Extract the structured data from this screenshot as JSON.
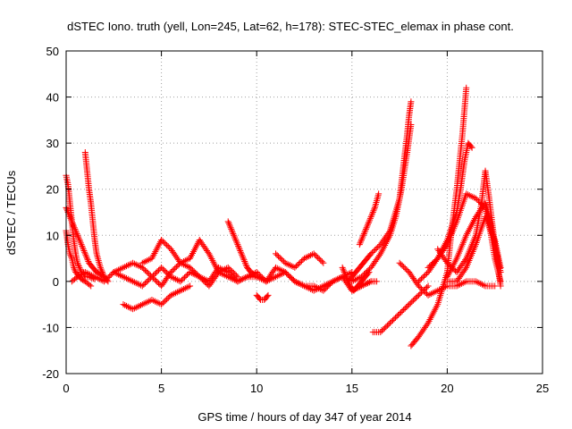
{
  "chart_data": {
    "type": "scatter",
    "title": "dSTEC Iono. truth (yell, Lon=245, Lat=62, h=178): STEC-STEC_elemax in phase cont.",
    "xlabel": "GPS time / hours of day 347 of year 2014",
    "ylabel": "dSTEC  / TECUs",
    "xlim": [
      0,
      25
    ],
    "ylim": [
      -20,
      50
    ],
    "xticks": [
      0,
      5,
      10,
      15,
      20,
      25
    ],
    "yticks": [
      -20,
      -10,
      0,
      10,
      20,
      30,
      40,
      50
    ],
    "grid": true,
    "legend": "none",
    "marker": "plus",
    "color": "#ff0000",
    "series": [
      {
        "x": [
          0.0,
          0.1,
          0.2,
          0.3,
          0.4,
          0.5,
          0.6,
          0.7,
          0.8,
          0.9,
          1.0,
          1.2,
          1.5
        ],
        "y": [
          23,
          21,
          17,
          13,
          9,
          6,
          4,
          3,
          2,
          2,
          1,
          1,
          0.5
        ]
      },
      {
        "x": [
          0.0,
          0.2,
          0.4,
          0.6,
          0.8,
          1.0,
          1.2,
          1.4,
          1.6,
          1.8,
          2.0
        ],
        "y": [
          16,
          14,
          12,
          10,
          8,
          6,
          4,
          3,
          2,
          1.5,
          1
        ]
      },
      {
        "x": [
          0.0,
          0.1,
          0.2,
          0.3,
          0.4,
          0.5,
          0.6,
          0.7,
          0.8,
          1.0,
          1.3
        ],
        "y": [
          11,
          8,
          6,
          5,
          3,
          2,
          1.5,
          1,
          0.5,
          0,
          -1
        ]
      },
      {
        "x": [
          1.0,
          1.1,
          1.2,
          1.3,
          1.4,
          1.5,
          1.6,
          1.8,
          2.0,
          2.2
        ],
        "y": [
          28,
          24,
          20,
          17,
          13,
          9,
          6,
          3,
          1,
          0
        ]
      },
      {
        "x": [
          0.3,
          0.6,
          1.0,
          1.5,
          2.0,
          2.5,
          3.0,
          3.5,
          4.0,
          4.5,
          5.0,
          5.5,
          6.0,
          6.5,
          7.0,
          7.5,
          8.0,
          8.5,
          9.0,
          9.5,
          10.0,
          10.5,
          11.0,
          11.5,
          12.0,
          12.5,
          13.0,
          13.5,
          14.0,
          14.5,
          15.0,
          15.5,
          16.0
        ],
        "y": [
          0,
          1,
          2,
          1,
          0,
          2,
          1,
          0,
          -1,
          1,
          3,
          1,
          0,
          2,
          1,
          -1,
          2,
          1,
          0,
          1,
          2,
          0,
          1,
          2,
          0,
          -1,
          -2,
          -1,
          0,
          1,
          -2,
          -1,
          0
        ]
      },
      {
        "x": [
          2.5,
          3.0,
          3.5,
          4.0,
          4.5,
          5.0,
          5.5,
          6.0,
          6.5,
          7.0,
          7.5,
          8.0,
          8.5,
          9.0,
          9.5,
          10.0,
          10.5,
          11.0,
          11.5,
          12.0,
          12.5,
          13.0,
          13.5,
          14.0,
          14.5,
          15.0
        ],
        "y": [
          2,
          3,
          4,
          3,
          1,
          -1,
          2,
          4,
          3,
          1,
          0,
          3,
          2,
          0,
          1,
          1,
          0,
          3,
          2,
          0,
          -1,
          -1,
          -2,
          0,
          1,
          2
        ]
      },
      {
        "x": [
          3.0,
          3.5,
          4.0,
          4.5,
          5.0,
          5.5,
          6.0,
          6.5
        ],
        "y": [
          -5,
          -6,
          -5,
          -4,
          -5,
          -3,
          -2,
          -1
        ]
      },
      {
        "x": [
          4.0,
          4.5,
          5.0,
          5.5,
          6.0,
          6.5,
          7.0,
          7.5,
          8.0,
          8.5,
          9.0
        ],
        "y": [
          4,
          5,
          9,
          7,
          4,
          5,
          9,
          6,
          2,
          3,
          1
        ]
      },
      {
        "x": [
          8.5,
          8.7,
          8.9,
          9.1,
          9.3,
          9.5,
          9.7,
          10.0
        ],
        "y": [
          13,
          11,
          9,
          7,
          5,
          3,
          2,
          1
        ]
      },
      {
        "x": [
          10.0,
          10.2,
          10.4,
          10.6
        ],
        "y": [
          -3,
          -4,
          -4,
          -3
        ]
      },
      {
        "x": [
          11.0,
          11.5,
          12.0,
          12.5,
          13.0,
          13.5
        ],
        "y": [
          6,
          4,
          3,
          5,
          6,
          4
        ]
      },
      {
        "x": [
          14.5,
          14.7,
          14.9,
          15.1,
          15.3,
          15.5,
          15.7,
          15.9
        ],
        "y": [
          3,
          1,
          -1,
          -2,
          -1,
          0,
          1,
          2
        ]
      },
      {
        "x": [
          15.0,
          15.5,
          16.0,
          16.3
        ],
        "y": [
          -2,
          -1,
          0,
          0
        ]
      },
      {
        "x": [
          15.4,
          15.6,
          15.8,
          16.0,
          16.2,
          16.4
        ],
        "y": [
          8,
          10,
          12,
          14,
          16,
          19
        ]
      },
      {
        "x": [
          14.8,
          15.0,
          15.2,
          15.4,
          15.6,
          15.8,
          16.0,
          16.5,
          17.0,
          17.5,
          17.7,
          17.9,
          18.0,
          18.1
        ],
        "y": [
          0,
          1,
          2,
          3,
          4,
          5,
          6,
          8,
          11,
          18,
          25,
          32,
          36,
          39
        ]
      },
      {
        "x": [
          15.0,
          15.5,
          16.0,
          16.5,
          17.0,
          17.3,
          17.6,
          17.9,
          18.1
        ],
        "y": [
          0,
          1,
          3,
          6,
          10,
          14,
          20,
          28,
          34
        ]
      },
      {
        "x": [
          16.1,
          16.5,
          17.0,
          17.5,
          18.0,
          18.5,
          19.0
        ],
        "y": [
          -11,
          -11,
          -9,
          -7,
          -5,
          -3,
          -1
        ]
      },
      {
        "x": [
          17.5,
          18.0,
          18.5,
          19.0,
          19.5,
          20.0,
          20.5,
          21.0,
          21.5,
          22.0,
          22.5
        ],
        "y": [
          4,
          2,
          -1,
          -3,
          -2,
          -1,
          -1,
          0,
          0,
          -1,
          -1
        ]
      },
      {
        "x": [
          18.1,
          18.5,
          19.0,
          19.5,
          20.0,
          20.2,
          20.5,
          20.8,
          21.0
        ],
        "y": [
          -14,
          -12,
          -9,
          -5,
          2,
          10,
          20,
          32,
          42
        ]
      },
      {
        "x": [
          18.5,
          19.0,
          19.5,
          20.0,
          20.5,
          20.7,
          20.9,
          21.1,
          21.3
        ],
        "y": [
          0,
          2,
          5,
          9,
          15,
          20,
          26,
          30,
          29
        ]
      },
      {
        "x": [
          19.0,
          19.5,
          20.0,
          20.5,
          21.0,
          21.5,
          22.0,
          22.3,
          22.5,
          22.8
        ],
        "y": [
          3,
          5,
          8,
          13,
          19,
          18,
          16,
          10,
          5,
          0
        ]
      },
      {
        "x": [
          20.0,
          20.5,
          21.0,
          21.5,
          22.0,
          22.2,
          22.4,
          22.6,
          22.8
        ],
        "y": [
          1,
          5,
          10,
          14,
          17,
          14,
          10,
          6,
          2
        ]
      },
      {
        "x": [
          19.5,
          20.0,
          20.5,
          21.0,
          21.5,
          21.8,
          22.0,
          22.2,
          22.5,
          22.8
        ],
        "y": [
          7,
          4,
          2,
          5,
          10,
          17,
          24,
          18,
          8,
          -1
        ]
      },
      {
        "x": [
          20.0,
          20.5,
          21.0,
          21.5,
          22.0,
          22.5,
          22.8
        ],
        "y": [
          0,
          0,
          3,
          8,
          14,
          9,
          3
        ]
      }
    ]
  }
}
